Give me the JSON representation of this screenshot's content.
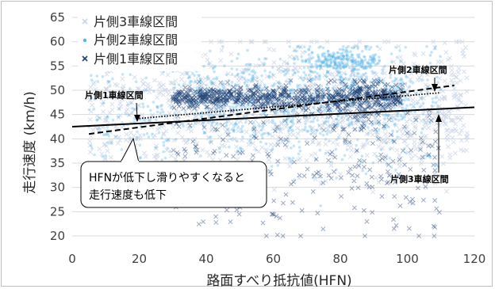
{
  "chart_data": {
    "type": "scatter",
    "title": "",
    "xlabel": "路面すべり抵抗値(HFN)",
    "ylabel": "走行速度 (km/h)",
    "xlim": [
      0,
      120
    ],
    "ylim": [
      20,
      65
    ],
    "xticks": [
      "0",
      "20",
      "40",
      "60",
      "80",
      "100",
      "120"
    ],
    "yticks": [
      "20",
      "25",
      "30",
      "35",
      "40",
      "45",
      "50",
      "55",
      "60",
      "65"
    ],
    "grid": "horizontal",
    "legend_position": "top-left",
    "series": [
      {
        "name": "片側3車線区間",
        "marker": "x",
        "color": "#c9d4e6",
        "x_range": [
          5,
          118
        ],
        "y_range": [
          20,
          60
        ],
        "center": [
          60,
          46
        ]
      },
      {
        "name": "片側2車線区間",
        "marker": "dot",
        "color": "#56b4e9",
        "x_range": [
          5,
          110
        ],
        "y_range": [
          20,
          59
        ],
        "center": [
          70,
          48
        ]
      },
      {
        "name": "片側1車線区間",
        "marker": "x",
        "color": "#1f3f73",
        "x_range": [
          15,
          112
        ],
        "y_range": [
          20,
          52
        ],
        "center": [
          75,
          46
        ]
      }
    ],
    "trendlines": [
      {
        "series": "片側3車線区間",
        "style": "solid",
        "x": [
          0,
          120
        ],
        "y": [
          42.5,
          46.5
        ]
      },
      {
        "series": "片側2車線区間",
        "style": "dashed",
        "x": [
          5,
          114
        ],
        "y": [
          41,
          51
        ]
      },
      {
        "series": "片側1車線区間",
        "style": "dotted",
        "x": [
          20,
          110
        ],
        "y": [
          44.2,
          49.5
        ]
      }
    ],
    "annotations": [
      {
        "text": "片側1車線区間",
        "target": [
          20,
          44.5
        ]
      },
      {
        "text": "片側2車線区間",
        "target": [
          108,
          50.5
        ]
      },
      {
        "text": "片側3車線区間",
        "target": [
          109,
          45.8
        ]
      }
    ],
    "callout": {
      "lines": [
        "HFNが低下し滑りやすくなると",
        "走行速度も低下"
      ]
    }
  }
}
